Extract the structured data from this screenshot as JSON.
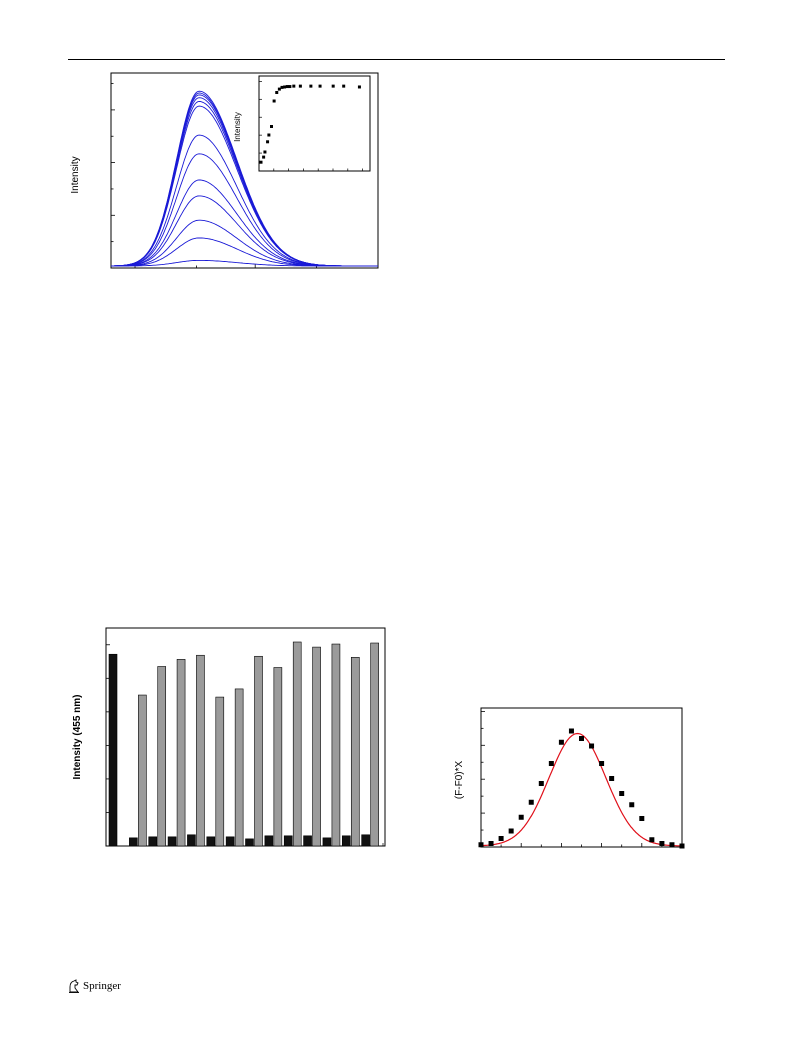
{
  "footer": {
    "publisher": "Springer"
  },
  "colors": {
    "spectra": "#1a1ad6",
    "bar_a": "#111111",
    "bar_b": "#9b9b9b",
    "fit_line": "#e0101a",
    "markers": "#000000"
  },
  "chart_data": [
    {
      "id": "emission-spectra",
      "type": "line",
      "title": "",
      "xlabel": "",
      "ylabel": "Intensity",
      "ylim": [
        0,
        1.0
      ],
      "xlim": [
        0,
        1
      ],
      "grid": false,
      "peak_x": 0.33,
      "series_peaks": [
        0.03,
        0.15,
        0.245,
        0.375,
        0.46,
        0.6,
        0.7,
        0.855,
        0.88,
        0.9,
        0.915,
        0.925,
        0.935
      ],
      "inset": {
        "type": "scatter",
        "xlabel": "",
        "ylabel": "Intensity",
        "xlim": [
          0,
          1
        ],
        "ylim": [
          0,
          1
        ],
        "x": [
          0.0,
          0.02,
          0.03,
          0.05,
          0.06,
          0.08,
          0.1,
          0.12,
          0.14,
          0.16,
          0.18,
          0.2,
          0.22,
          0.25,
          0.3,
          0.38,
          0.45,
          0.55,
          0.63,
          0.75
        ],
        "y": [
          0.08,
          0.14,
          0.2,
          0.32,
          0.4,
          0.5,
          0.8,
          0.9,
          0.94,
          0.96,
          0.965,
          0.97,
          0.97,
          0.975,
          0.975,
          0.975,
          0.975,
          0.975,
          0.975,
          0.965
        ]
      }
    },
    {
      "id": "selectivity-bars",
      "type": "bar",
      "title": "",
      "xlabel": "",
      "ylabel": "Intensity (455 nm)",
      "ylim": [
        0,
        1.0
      ],
      "grid": false,
      "series": [
        {
          "values": [
            0.94,
            0.04,
            0.045,
            0.045,
            0.055,
            0.045,
            0.045,
            0.035,
            0.05,
            0.05,
            0.05,
            0.04,
            0.05,
            0.055
          ]
        },
        {
          "values": [
            null,
            0.74,
            0.88,
            0.915,
            0.935,
            0.73,
            0.77,
            0.93,
            0.875,
            1.0,
            0.975,
            0.99,
            0.925,
            0.995
          ]
        }
      ]
    },
    {
      "id": "job-plot",
      "type": "scatter",
      "title": "",
      "xlabel": "",
      "ylabel": "(F-F0)*X",
      "xlim": [
        0,
        1
      ],
      "ylim": [
        0,
        1
      ],
      "grid": false,
      "x": [
        0.0,
        0.05,
        0.1,
        0.15,
        0.2,
        0.25,
        0.3,
        0.35,
        0.4,
        0.45,
        0.5,
        0.55,
        0.6,
        0.65,
        0.7,
        0.75,
        0.8,
        0.85,
        0.9,
        0.95,
        1.0
      ],
      "y": [
        0.01,
        0.02,
        0.06,
        0.12,
        0.23,
        0.35,
        0.5,
        0.66,
        0.83,
        0.92,
        0.86,
        0.8,
        0.66,
        0.54,
        0.42,
        0.33,
        0.22,
        0.05,
        0.02,
        0.01,
        0.0
      ],
      "fit": {
        "center": 0.48,
        "width": 0.2,
        "height": 0.9
      }
    }
  ]
}
